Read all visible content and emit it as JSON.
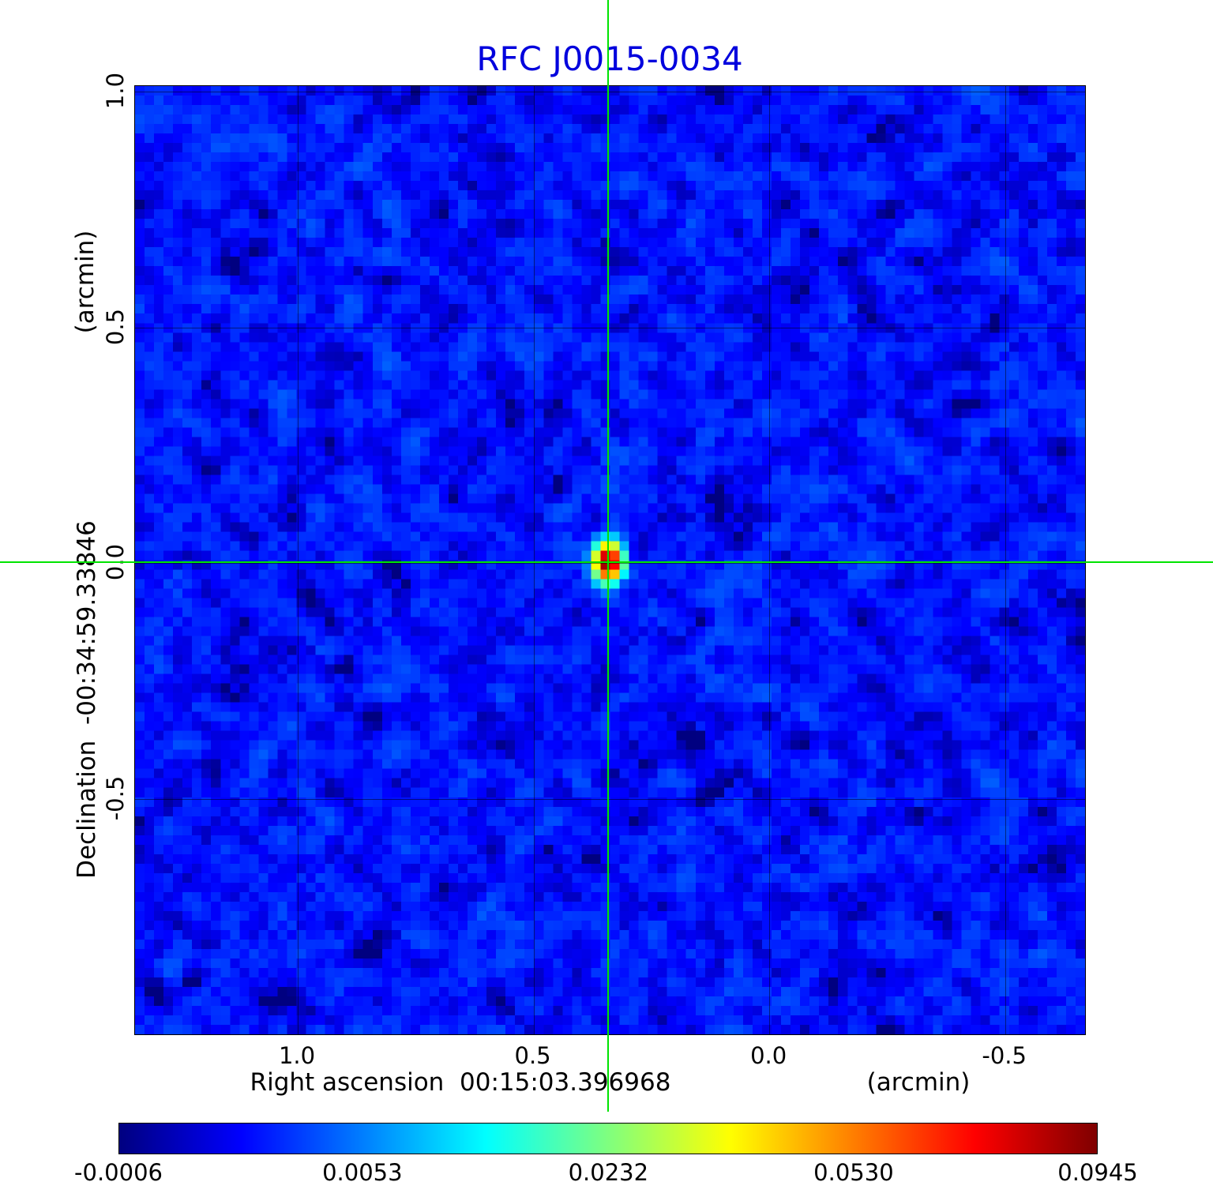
{
  "chart_data": {
    "type": "heatmap",
    "title": "RFC J0015-0034",
    "title_color": "#0000dd",
    "xlabel": "Right ascension  00:15:03.396968",
    "x_unit": "(arcmin)",
    "ylabel": "Declination  -00:34:59.33846",
    "y_unit": "(arcmin)",
    "xlim": [
      1.345,
      -0.673
    ],
    "ylim": [
      1.012,
      -1.003
    ],
    "xticks": [
      1.0,
      0.5,
      0.0,
      -0.5
    ],
    "yticks": [
      1.0,
      0.5,
      0.0,
      -0.5
    ],
    "grid": true,
    "legend": "none",
    "colormap": "jet",
    "scale": "sqrt",
    "value_min": -0.0006,
    "value_max": 0.0945,
    "colorbar_ticks": [
      -0.0006,
      0.0053,
      0.0232,
      0.053,
      0.0945
    ],
    "crosshair": {
      "x": 0.34,
      "y": 0.0,
      "color": "#00e400"
    },
    "source": {
      "x": 0.34,
      "y": 0.0,
      "peak": 0.0945,
      "sigma_x_cells": 0.95,
      "sigma_y_cells": 1.25
    },
    "background_level": 0.0013,
    "noise_sigma": 0.0009,
    "noise_seed": 42,
    "grid_cells": 100,
    "dark_spot_cell": [
      23,
      91
    ]
  }
}
